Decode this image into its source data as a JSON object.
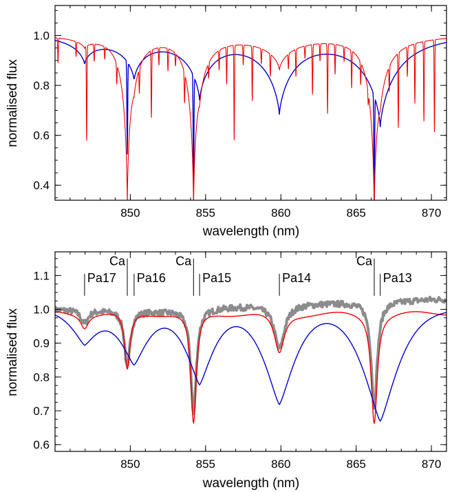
{
  "chart_data": [
    {
      "type": "line",
      "title": "",
      "xlabel": "wavelength (nm)",
      "ylabel": "normalised flux",
      "xlim": [
        845,
        871
      ],
      "ylim": [
        0.34,
        1.12
      ],
      "xticks": [
        850,
        855,
        860,
        865,
        870
      ],
      "yticks": [
        0.4,
        0.6,
        0.8,
        1.0
      ],
      "ytick_labels": [
        "0.4",
        "0.6",
        "0.8",
        "1.0"
      ],
      "colors": {
        "blue_model": "#0000cc",
        "red_model": "#ee0000"
      },
      "series": [
        {
          "color": "#0000cc",
          "profile": "broad",
          "lines": [
            {
              "center": 846.96,
              "depth": 0.1,
              "width": 0.75
            },
            {
              "center": 850.25,
              "depth": 0.16,
              "width": 0.8
            },
            {
              "center": 854.6,
              "depth": 0.24,
              "width": 0.85
            },
            {
              "center": 859.9,
              "depth": 0.3,
              "width": 1.0
            },
            {
              "center": 866.6,
              "depth": 0.36,
              "width": 1.1
            }
          ],
          "sharp_lines": [
            {
              "center": 849.8,
              "depth": 0.37
            },
            {
              "center": 854.2,
              "depth": 0.45
            },
            {
              "center": 866.2,
              "depth": 0.44
            }
          ]
        },
        {
          "color": "#ee0000",
          "profile": "narrow",
          "lines": [
            {
              "center": 846.96,
              "depth": 0.04,
              "width": 0.35
            },
            {
              "center": 849.8,
              "depth": 0.63,
              "width": 0.12
            },
            {
              "center": 850.25,
              "depth": 0.1,
              "width": 0.4
            },
            {
              "center": 854.2,
              "depth": 0.63,
              "width": 0.12
            },
            {
              "center": 854.6,
              "depth": 0.12,
              "width": 0.45
            },
            {
              "center": 859.9,
              "depth": 0.13,
              "width": 0.5
            },
            {
              "center": 866.2,
              "depth": 0.63,
              "width": 0.12
            },
            {
              "center": 866.6,
              "depth": 0.15,
              "width": 0.55
            }
          ],
          "metal_lines": [
            {
              "x": 845.2,
              "d": 0.1
            },
            {
              "x": 846.4,
              "d": 0.06
            },
            {
              "x": 847.1,
              "d": 0.38
            },
            {
              "x": 847.6,
              "d": 0.07
            },
            {
              "x": 848.3,
              "d": 0.05
            },
            {
              "x": 849.1,
              "d": 0.08
            },
            {
              "x": 850.6,
              "d": 0.1
            },
            {
              "x": 851.4,
              "d": 0.27
            },
            {
              "x": 851.9,
              "d": 0.07
            },
            {
              "x": 852.5,
              "d": 0.09
            },
            {
              "x": 853.0,
              "d": 0.05
            },
            {
              "x": 853.6,
              "d": 0.12
            },
            {
              "x": 855.2,
              "d": 0.06
            },
            {
              "x": 855.9,
              "d": 0.08
            },
            {
              "x": 856.4,
              "d": 0.15
            },
            {
              "x": 856.9,
              "d": 0.38
            },
            {
              "x": 857.5,
              "d": 0.08
            },
            {
              "x": 858.1,
              "d": 0.22
            },
            {
              "x": 858.7,
              "d": 0.06
            },
            {
              "x": 859.3,
              "d": 0.09
            },
            {
              "x": 860.5,
              "d": 0.06
            },
            {
              "x": 861.0,
              "d": 0.11
            },
            {
              "x": 861.6,
              "d": 0.05
            },
            {
              "x": 862.1,
              "d": 0.2
            },
            {
              "x": 862.6,
              "d": 0.07
            },
            {
              "x": 863.1,
              "d": 0.28
            },
            {
              "x": 863.6,
              "d": 0.12
            },
            {
              "x": 864.2,
              "d": 0.06
            },
            {
              "x": 864.7,
              "d": 0.15
            },
            {
              "x": 865.3,
              "d": 0.09
            },
            {
              "x": 865.8,
              "d": 0.05
            },
            {
              "x": 867.2,
              "d": 0.1
            },
            {
              "x": 867.8,
              "d": 0.3
            },
            {
              "x": 868.4,
              "d": 0.12
            },
            {
              "x": 868.9,
              "d": 0.24
            },
            {
              "x": 869.5,
              "d": 0.32
            },
            {
              "x": 870.2,
              "d": 0.37
            }
          ]
        }
      ]
    },
    {
      "type": "line",
      "title": "",
      "xlabel": "wavelength (nm)",
      "ylabel": "normalised flux",
      "xlim": [
        845,
        871
      ],
      "ylim": [
        0.58,
        1.17
      ],
      "xticks": [
        850,
        855,
        860,
        865,
        870
      ],
      "yticks": [
        0.6,
        0.7,
        0.8,
        0.9,
        1.0,
        1.1
      ],
      "ytick_labels": [
        "0.6",
        "0.7",
        "0.8",
        "0.9",
        "1.0",
        "1.1"
      ],
      "colors": {
        "gray_observed": "#8c8c8c",
        "red_model": "#ee0000",
        "blue_model": "#0000cc"
      },
      "series": [
        {
          "color": "#8c8c8c",
          "baseline_peaks": [
            {
              "x": 847.0,
              "v": 1.0
            },
            {
              "x": 852.0,
              "v": 0.995
            },
            {
              "x": 857.3,
              "v": 1.01
            },
            {
              "x": 863.5,
              "v": 1.02
            },
            {
              "x": 870.0,
              "v": 1.03
            }
          ],
          "lines": [
            {
              "center": 846.96,
              "depth": 0.04,
              "width": 0.3
            },
            {
              "center": 849.8,
              "depth": 0.17,
              "width": 0.22
            },
            {
              "center": 854.2,
              "depth": 0.31,
              "width": 0.22
            },
            {
              "center": 859.9,
              "depth": 0.13,
              "width": 0.4
            },
            {
              "center": 866.2,
              "depth": 0.31,
              "width": 0.24
            }
          ]
        },
        {
          "color": "#ee0000",
          "lines": [
            {
              "center": 846.96,
              "depth": 0.04,
              "width": 0.3
            },
            {
              "center": 849.8,
              "depth": 0.17,
              "width": 0.22
            },
            {
              "center": 854.2,
              "depth": 0.33,
              "width": 0.22
            },
            {
              "center": 859.9,
              "depth": 0.12,
              "width": 0.4
            },
            {
              "center": 866.2,
              "depth": 0.32,
              "width": 0.24
            }
          ]
        },
        {
          "color": "#0000cc",
          "lines": [
            {
              "center": 846.96,
              "depth": 0.1,
              "width": 0.75
            },
            {
              "center": 850.25,
              "depth": 0.16,
              "width": 0.8
            },
            {
              "center": 854.6,
              "depth": 0.22,
              "width": 0.8
            },
            {
              "center": 859.9,
              "depth": 0.28,
              "width": 0.9
            },
            {
              "center": 866.6,
              "depth": 0.33,
              "width": 1.0
            }
          ]
        }
      ],
      "annotations": [
        {
          "label": "Ca",
          "x": 849.8,
          "y_line_top": 1.15,
          "y_line_bottom": 1.04,
          "y_label": 1.13
        },
        {
          "label": "Ca",
          "x": 854.2,
          "y_line_top": 1.15,
          "y_line_bottom": 1.04,
          "y_label": 1.13
        },
        {
          "label": "Ca",
          "x": 866.2,
          "y_line_top": 1.15,
          "y_line_bottom": 1.04,
          "y_label": 1.13
        },
        {
          "label": "Pa17",
          "x": 846.96,
          "y_line_top": 1.105,
          "y_line_bottom": 1.04,
          "y_label": 1.08
        },
        {
          "label": "Pa16",
          "x": 850.25,
          "y_line_top": 1.105,
          "y_line_bottom": 1.04,
          "y_label": 1.08
        },
        {
          "label": "Pa15",
          "x": 854.6,
          "y_line_top": 1.105,
          "y_line_bottom": 1.04,
          "y_label": 1.08
        },
        {
          "label": "Pa14",
          "x": 859.9,
          "y_line_top": 1.105,
          "y_line_bottom": 1.04,
          "y_label": 1.08
        },
        {
          "label": "Pa13",
          "x": 866.6,
          "y_line_top": 1.105,
          "y_line_bottom": 1.04,
          "y_label": 1.08
        }
      ]
    }
  ]
}
